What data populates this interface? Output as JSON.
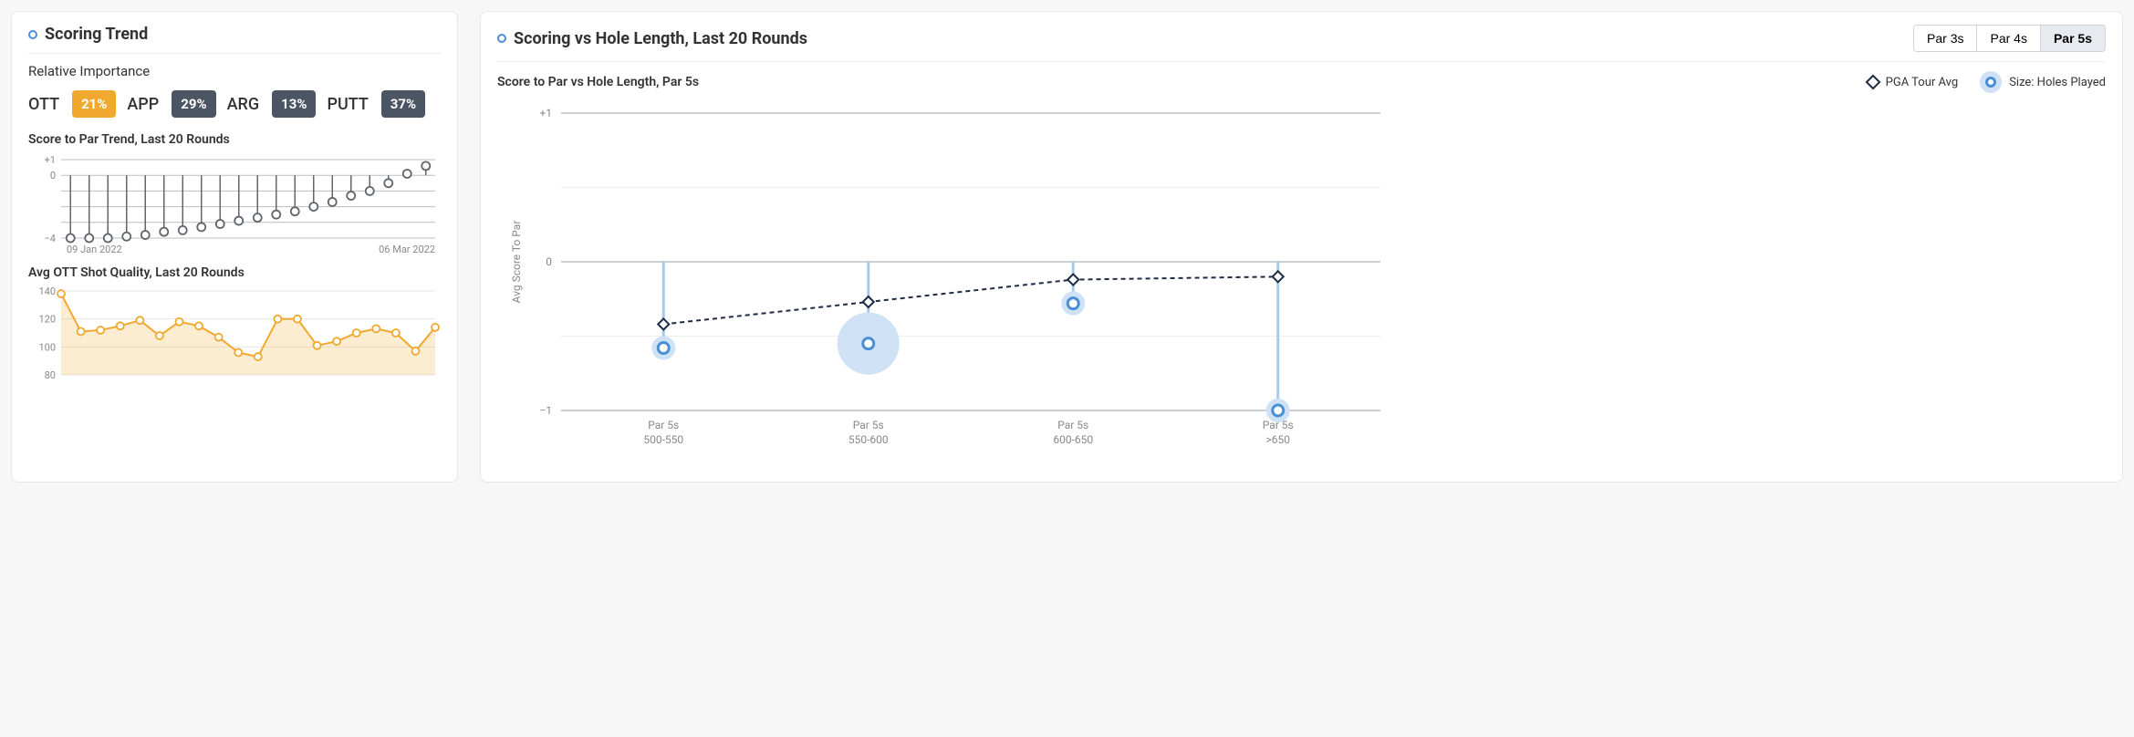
{
  "left": {
    "title": "Scoring Trend",
    "importance_label": "Relative Importance",
    "importance": [
      {
        "name": "OTT",
        "value": "21%",
        "color": "#f0a92e"
      },
      {
        "name": "APP",
        "value": "29%",
        "color": "#4b5563"
      },
      {
        "name": "ARG",
        "value": "13%",
        "color": "#4b5563"
      },
      {
        "name": "PUTT",
        "value": "37%",
        "color": "#4b5563"
      }
    ],
    "trend": {
      "title": "Score to Par Trend, Last 20 Rounds",
      "ylim": [
        -4,
        1
      ],
      "yticks": [
        1,
        0,
        -4
      ],
      "ytick_labels": [
        "+1",
        "0",
        "−4"
      ],
      "grid_color": "#bdbdbd",
      "line_color": "#5f656d",
      "marker_border": "#5f656d",
      "marker_fill": "#ffffff",
      "marker_r": 4.5,
      "values": [
        -4.0,
        -4.0,
        -4.0,
        -3.9,
        -3.8,
        -3.6,
        -3.5,
        -3.3,
        -3.1,
        -2.9,
        -2.7,
        -2.5,
        -2.3,
        -2.0,
        -1.7,
        -1.3,
        -1.0,
        -0.5,
        0.1,
        0.6
      ],
      "x_min_label": "09 Jan 2022",
      "x_max_label": "06 Mar 2022"
    },
    "ott": {
      "title": "Avg OTT Shot Quality, Last 20 Rounds",
      "ylim": [
        80,
        140
      ],
      "yticks": [
        140,
        120,
        100,
        80
      ],
      "grid_color": "#e6e6e6",
      "line_color": "#f0a92e",
      "fill_color": "rgba(240,169,46,0.22)",
      "marker_border": "#f0a92e",
      "marker_fill": "#ffffff",
      "marker_r": 4,
      "values": [
        138,
        111,
        112,
        115,
        119,
        108,
        118,
        115,
        107,
        96,
        93,
        120,
        120,
        101,
        104,
        110,
        113,
        110,
        97,
        114
      ]
    }
  },
  "right": {
    "title": "Scoring vs Hole Length, Last 20 Rounds",
    "tabs": [
      "Par 3s",
      "Par 4s",
      "Par 5s"
    ],
    "tab_active": 2,
    "subtitle": "Score to Par vs Hole Length, Par 5s",
    "legend_diamond": "PGA Tour Avg",
    "legend_circle": "Size: Holes Played",
    "y_axis_label": "Avg Score To Par",
    "chart": {
      "type": "bubble+line",
      "ylim": [
        -1,
        1
      ],
      "yticks": [
        1,
        0,
        -1
      ],
      "ytick_labels": [
        "+1",
        "0",
        "−1"
      ],
      "grid_color_major": "#9aa0a6",
      "grid_color_faint": "#eeeeee",
      "stem_color": "#a6c9ec",
      "stem_width": 3,
      "dash_color": "#1f2a44",
      "dash_width": 2,
      "dash_pattern": "5,4",
      "diamond_border": "#1f2a44",
      "diamond_fill": "#ffffff",
      "bubble_fill": "#cfe1f5",
      "bubble_inner_border": "#4a8fd6",
      "categories": [
        {
          "top": "Par 5s",
          "bottom": "500-550"
        },
        {
          "top": "Par 5s",
          "bottom": "550-600"
        },
        {
          "top": "Par 5s",
          "bottom": "600-650"
        },
        {
          "top": "Par 5s",
          "bottom": ">650"
        }
      ],
      "player": [
        {
          "y": -0.58,
          "r": 13
        },
        {
          "y": -0.55,
          "r": 34
        },
        {
          "y": -0.28,
          "r": 13
        },
        {
          "y": -1.0,
          "r": 13
        }
      ],
      "tour_avg_y": [
        -0.42,
        -0.27,
        -0.12,
        -0.1
      ]
    }
  }
}
